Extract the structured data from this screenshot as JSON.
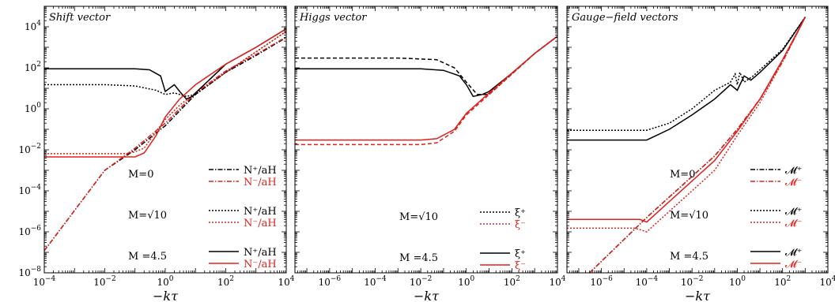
{
  "colors": {
    "black": "#000000",
    "red": "#e0201b"
  },
  "line_styles": {
    "M=0": "dashdot",
    "M=√10": "dotted",
    "M=4.5": "solid"
  },
  "chart_data": [
    {
      "type": "line",
      "title": "Shift vector",
      "xlabel": "−kτ",
      "ylabel": "",
      "xscale": "log",
      "yscale": "log",
      "xlim": [
        0.0001,
        10000
      ],
      "ylim": [
        1e-08,
        100000
      ],
      "x_ticks": [
        -4,
        -2,
        0,
        2,
        4
      ],
      "x_tick_labels": [
        {
          "b": "10",
          "e": "−4"
        },
        {
          "b": "10",
          "e": "−2"
        },
        {
          "b": "10",
          "e": "0"
        },
        {
          "b": "10",
          "e": "2"
        },
        {
          "b": "10",
          "e": "4"
        }
      ],
      "y_ticks": [
        -8,
        -6,
        -4,
        -2,
        0,
        2,
        4
      ],
      "y_tick_labels": [
        {
          "b": "10",
          "e": "−8"
        },
        {
          "b": "10",
          "e": "−6"
        },
        {
          "b": "10",
          "e": "−4"
        },
        {
          "b": "10",
          "e": "−2"
        },
        {
          "b": "10",
          "e": "0"
        },
        {
          "b": "10",
          "e": "2"
        },
        {
          "b": "10",
          "e": "4"
        }
      ],
      "legend": [
        {
          "m": "M=0",
          "entries": [
            {
              "label": "N⁺/aH",
              "color": "black",
              "style": "dashdot"
            },
            {
              "label": "N⁻/aH",
              "color": "red",
              "style": "dashdot"
            }
          ]
        },
        {
          "m": "M=√10",
          "entries": [
            {
              "label": "N⁺/aH",
              "color": "black",
              "style": "dotted"
            },
            {
              "label": "N⁻/aH",
              "color": "red",
              "style": "dotted"
            }
          ]
        },
        {
          "m": "M =4.5",
          "entries": [
            {
              "label": "N⁺/aH",
              "color": "black",
              "style": "solid"
            },
            {
              "label": "N⁻/aH",
              "color": "red",
              "style": "solid"
            }
          ]
        }
      ],
      "series": [
        {
          "color": "black",
          "style": "dashdot",
          "points": [
            [
              0.0001,
              1.2e-07
            ],
            [
              0.001,
              1.1e-05
            ],
            [
              0.01,
              0.001
            ],
            [
              0.1,
              0.01
            ],
            [
              1,
              0.15
            ],
            [
              10,
              5
            ],
            [
              100,
              60
            ],
            [
              1000,
              400
            ],
            [
              10000,
              3000
            ]
          ]
        },
        {
          "color": "red",
          "style": "dashdot",
          "points": [
            [
              0.0001,
              1.2e-07
            ],
            [
              0.001,
              1.1e-05
            ],
            [
              0.01,
              0.001
            ],
            [
              0.1,
              0.012
            ],
            [
              1,
              0.2
            ],
            [
              10,
              6
            ],
            [
              100,
              70
            ],
            [
              1000,
              450
            ],
            [
              10000,
              3200
            ]
          ]
        },
        {
          "color": "black",
          "style": "dotted",
          "points": [
            [
              0.0001,
              15
            ],
            [
              0.01,
              15
            ],
            [
              0.1,
              13
            ],
            [
              0.5,
              8
            ],
            [
              1,
              5
            ],
            [
              2,
              6
            ],
            [
              5,
              4
            ],
            [
              10,
              5
            ],
            [
              100,
              60
            ],
            [
              1000,
              600
            ],
            [
              10000,
              6000
            ]
          ]
        },
        {
          "color": "red",
          "style": "dotted",
          "points": [
            [
              0.0001,
              0.0065
            ],
            [
              0.05,
              0.0065
            ],
            [
              0.1,
              0.008
            ],
            [
              0.2,
              0.012
            ],
            [
              0.5,
              0.08
            ],
            [
              1,
              0.3
            ],
            [
              3,
              1.5
            ],
            [
              10,
              6
            ],
            [
              100,
              60
            ],
            [
              1000,
              600
            ],
            [
              10000,
              6000
            ]
          ]
        },
        {
          "color": "black",
          "style": "solid",
          "points": [
            [
              0.0001,
              90
            ],
            [
              0.1,
              90
            ],
            [
              0.3,
              80
            ],
            [
              0.7,
              40
            ],
            [
              1,
              7
            ],
            [
              2,
              15
            ],
            [
              3,
              7
            ],
            [
              5,
              3
            ],
            [
              8,
              4
            ],
            [
              10,
              6
            ],
            [
              100,
              150
            ],
            [
              1000,
              1000
            ],
            [
              10000,
              8000
            ]
          ]
        },
        {
          "color": "red",
          "style": "solid",
          "points": [
            [
              0.0001,
              0.0045
            ],
            [
              0.1,
              0.0045
            ],
            [
              0.2,
              0.007
            ],
            [
              0.5,
              0.05
            ],
            [
              1,
              0.4
            ],
            [
              3,
              3
            ],
            [
              10,
              15
            ],
            [
              100,
              150
            ],
            [
              1000,
              1000
            ],
            [
              10000,
              8000
            ]
          ]
        }
      ]
    },
    {
      "type": "line",
      "title": "Higgs vector",
      "xlabel": "−kτ",
      "ylabel": "",
      "xscale": "log",
      "yscale": "log",
      "xlim": [
        3e-08,
        10000
      ],
      "ylim": [
        1e-08,
        100000
      ],
      "x_ticks": [
        -6,
        -4,
        -2,
        0,
        2,
        4
      ],
      "x_tick_labels": [
        {
          "b": "10",
          "e": "−6"
        },
        {
          "b": "10",
          "e": "−4"
        },
        {
          "b": "10",
          "e": "−2"
        },
        {
          "b": "10",
          "e": "0"
        },
        {
          "b": "10",
          "e": "2"
        },
        {
          "b": "10",
          "e": "4"
        }
      ],
      "y_ticks": [
        -8,
        -6,
        -4,
        -2,
        0,
        2,
        4
      ],
      "legend": [
        {
          "m": "M=√10",
          "entries": [
            {
              "label": "ξ⁺",
              "color": "black",
              "style": "dotted"
            },
            {
              "label": "ξ⁻",
              "color": "red",
              "style": "dotted"
            }
          ]
        },
        {
          "m": "M =4.5",
          "entries": [
            {
              "label": "ξ⁺",
              "color": "black",
              "style": "solid"
            },
            {
              "label": "ξ⁻",
              "color": "red",
              "style": "solid"
            }
          ]
        }
      ],
      "series": [
        {
          "color": "black",
          "style": "dashed",
          "points": [
            [
              3e-08,
              300
            ],
            [
              0.001,
              300
            ],
            [
              0.05,
              250
            ],
            [
              0.3,
              100
            ],
            [
              1,
              20
            ],
            [
              3,
              5
            ],
            [
              10,
              5
            ],
            [
              100,
              50
            ],
            [
              1000,
              500
            ],
            [
              10000,
              3500
            ]
          ]
        },
        {
          "color": "red",
          "style": "dashed",
          "points": [
            [
              3e-08,
              0.018
            ],
            [
              0.01,
              0.018
            ],
            [
              0.05,
              0.022
            ],
            [
              0.3,
              0.08
            ],
            [
              1,
              0.5
            ],
            [
              10,
              5
            ],
            [
              100,
              50
            ],
            [
              1000,
              500
            ],
            [
              10000,
              3500
            ]
          ]
        },
        {
          "color": "black",
          "style": "solid",
          "points": [
            [
              3e-08,
              90
            ],
            [
              0.01,
              90
            ],
            [
              0.1,
              75
            ],
            [
              0.5,
              40
            ],
            [
              1,
              15
            ],
            [
              2,
              4
            ],
            [
              5,
              5
            ],
            [
              10,
              7
            ],
            [
              100,
              55
            ],
            [
              1000,
              500
            ],
            [
              10000,
              3500
            ]
          ]
        },
        {
          "color": "red",
          "style": "solid",
          "points": [
            [
              3e-08,
              0.03
            ],
            [
              0.01,
              0.03
            ],
            [
              0.05,
              0.035
            ],
            [
              0.3,
              0.1
            ],
            [
              1,
              0.6
            ],
            [
              10,
              6
            ],
            [
              100,
              55
            ],
            [
              1000,
              500
            ],
            [
              10000,
              3500
            ]
          ]
        }
      ]
    },
    {
      "type": "line",
      "title": "Gauge−field vectors",
      "xlabel": "−kτ",
      "ylabel": "",
      "xscale": "log",
      "yscale": "log",
      "xlim": [
        3e-08,
        10000
      ],
      "ylim": [
        1e-08,
        100000
      ],
      "x_ticks": [
        -6,
        -4,
        -2,
        0,
        2,
        4
      ],
      "x_tick_labels": [
        {
          "b": "10",
          "e": "−6"
        },
        {
          "b": "10",
          "e": "−4"
        },
        {
          "b": "10",
          "e": "−2"
        },
        {
          "b": "10",
          "e": "0"
        },
        {
          "b": "10",
          "e": "2"
        },
        {
          "b": "10",
          "e": "4"
        }
      ],
      "y_ticks": [
        -8,
        -6,
        -4,
        -2,
        0,
        2,
        4
      ],
      "legend": [
        {
          "m": "M=0",
          "entries": [
            {
              "label": "𝓜⁺",
              "color": "black",
              "style": "dashdot"
            },
            {
              "label": "𝓜⁻",
              "color": "red",
              "style": "dashdot"
            }
          ]
        },
        {
          "m": "M=√10",
          "entries": [
            {
              "label": "𝓜⁺",
              "color": "black",
              "style": "dotted"
            },
            {
              "label": "𝓜⁻",
              "color": "red",
              "style": "dotted"
            }
          ]
        },
        {
          "m": "M =4.5",
          "entries": [
            {
              "label": "𝓜⁺",
              "color": "black",
              "style": "solid"
            },
            {
              "label": "𝓜⁻",
              "color": "red",
              "style": "solid"
            }
          ]
        }
      ],
      "series": [
        {
          "color": "black",
          "style": "dashdot",
          "points": [
            [
              3e-07,
              1e-08
            ],
            [
              0.0001,
              5e-06
            ],
            [
              0.001,
              5e-05
            ],
            [
              0.01,
              0.0005
            ],
            [
              0.1,
              0.005
            ],
            [
              1,
              0.1
            ],
            [
              10,
              3
            ],
            [
              100,
              200
            ],
            [
              1000,
              30000
            ]
          ]
        },
        {
          "color": "red",
          "style": "dashdot",
          "points": [
            [
              3e-07,
              1e-08
            ],
            [
              0.0001,
              5e-06
            ],
            [
              0.001,
              5e-05
            ],
            [
              0.01,
              0.0005
            ],
            [
              0.1,
              0.005
            ],
            [
              1,
              0.1
            ],
            [
              10,
              3
            ],
            [
              100,
              200
            ],
            [
              1000,
              30000
            ]
          ]
        },
        {
          "color": "black",
          "style": "dotted",
          "points": [
            [
              3e-08,
              0.09
            ],
            [
              0.0001,
              0.09
            ],
            [
              0.001,
              0.2
            ],
            [
              0.01,
              1
            ],
            [
              0.1,
              8
            ],
            [
              0.5,
              20
            ],
            [
              0.8,
              50
            ],
            [
              1,
              15
            ],
            [
              1.3,
              60
            ],
            [
              2,
              20
            ],
            [
              5,
              40
            ],
            [
              10,
              80
            ],
            [
              100,
              800
            ],
            [
              1000,
              30000
            ]
          ]
        },
        {
          "color": "red",
          "style": "dotted",
          "points": [
            [
              3e-08,
              1.5e-06
            ],
            [
              3e-05,
              1.5e-06
            ],
            [
              6e-05,
              1.2e-06
            ],
            [
              0.0001,
              1e-06
            ],
            [
              0.001,
              1e-05
            ],
            [
              0.01,
              0.0001
            ],
            [
              0.1,
              0.001
            ],
            [
              1,
              0.05
            ],
            [
              10,
              2
            ],
            [
              100,
              200
            ],
            [
              1000,
              30000
            ]
          ]
        },
        {
          "color": "black",
          "style": "solid",
          "points": [
            [
              3e-08,
              0.03
            ],
            [
              0.0001,
              0.03
            ],
            [
              0.001,
              0.1
            ],
            [
              0.01,
              0.5
            ],
            [
              0.1,
              3
            ],
            [
              0.5,
              15
            ],
            [
              1,
              8
            ],
            [
              2,
              40
            ],
            [
              4,
              25
            ],
            [
              10,
              60
            ],
            [
              100,
              700
            ],
            [
              1000,
              30000
            ]
          ]
        },
        {
          "color": "red",
          "style": "solid",
          "points": [
            [
              3e-08,
              4e-06
            ],
            [
              5e-05,
              4e-06
            ],
            [
              0.0001,
              3e-06
            ],
            [
              0.001,
              3e-05
            ],
            [
              0.01,
              0.0003
            ],
            [
              0.1,
              0.003
            ],
            [
              1,
              0.08
            ],
            [
              10,
              3
            ],
            [
              100,
              250
            ],
            [
              1000,
              30000
            ]
          ]
        }
      ]
    }
  ]
}
